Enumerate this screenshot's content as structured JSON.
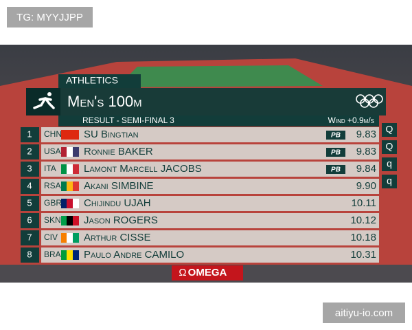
{
  "watermark_top": "TG: MYYJJPP",
  "watermark_bottom": "aitiyu-io.com",
  "header": {
    "event_group": "ATHLETICS",
    "title": "Men's 100m",
    "subtitle": "RESULT - SEMI-FINAL 3",
    "wind": "Wind +0.9m/s"
  },
  "table": {
    "rows": [
      [
        "1",
        "CHN",
        "SU Bingtian",
        "PB",
        "9.83",
        "Q"
      ],
      [
        "2",
        "USA",
        "Ronnie BAKER",
        "PB",
        "9.83",
        "Q"
      ],
      [
        "3",
        "ITA",
        "Lamont Marcell JACOBS",
        "PB",
        "9.84",
        "q"
      ],
      [
        "4",
        "RSA",
        "Akani SIMBINE",
        "",
        "9.90",
        "q"
      ],
      [
        "5",
        "GBR",
        "Chijindu UJAH",
        "",
        "10.11",
        ""
      ],
      [
        "6",
        "SKN",
        "Jason ROGERS",
        "",
        "10.12",
        ""
      ],
      [
        "7",
        "CIV",
        "Arthur CISSE",
        "",
        "10.18",
        ""
      ],
      [
        "8",
        "BRA",
        "Paulo Andre CAMILO",
        "",
        "10.31",
        ""
      ]
    ]
  },
  "sponsor": "OMEGA"
}
